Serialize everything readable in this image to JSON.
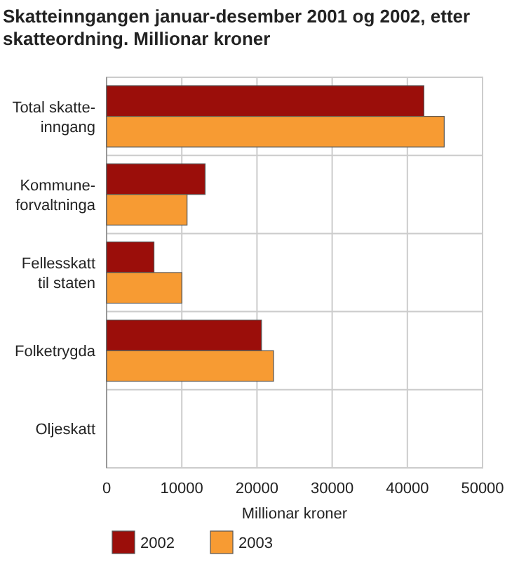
{
  "chart_data": {
    "type": "bar",
    "orientation": "horizontal",
    "title": "Skatteinngangen januar-desember 2001 og 2002, etter skatteordning. Millionar kroner",
    "xlabel": "Millionar kroner",
    "categories": [
      "Total skatte-\ninngang",
      "Kommune-\nforvaltninga",
      "Fellesskatt\ntil staten",
      "Folketrygda",
      "Oljeskatt"
    ],
    "series": [
      {
        "name": "2002",
        "color": "#9b0e0a",
        "values": [
          42200,
          13100,
          6300,
          20600,
          null
        ]
      },
      {
        "name": "2003",
        "color": "#f79b33",
        "values": [
          44900,
          10700,
          10000,
          22200,
          null
        ]
      }
    ],
    "xlim": [
      0,
      50000
    ],
    "xticks": [
      0,
      10000,
      20000,
      30000,
      40000,
      50000
    ],
    "grid": "x",
    "legend": "bottom"
  }
}
